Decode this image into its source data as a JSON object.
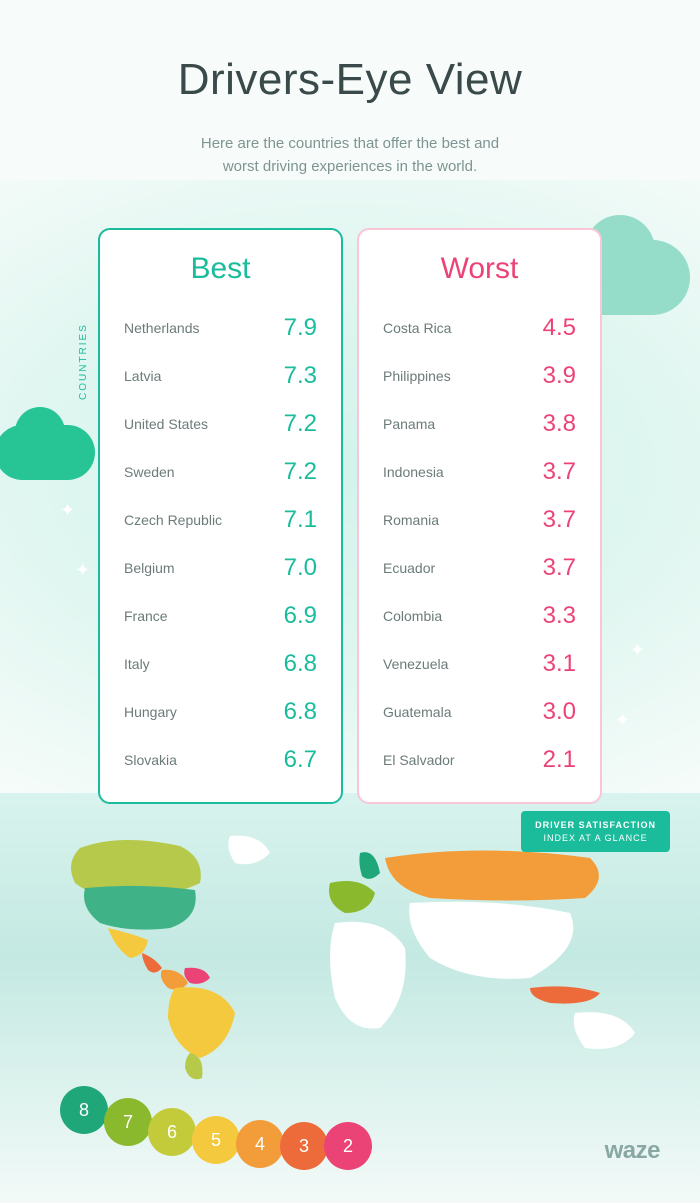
{
  "title": "Drivers-Eye View",
  "subtitle_l1": "Here are the countries that offer the best and",
  "subtitle_l2": "worst driving experiences in the world.",
  "ylabel": "COUNTRIES",
  "best": {
    "title": "Best",
    "color": "#1abc9c",
    "border_color": "#1abc9c",
    "rows": [
      {
        "country": "Netherlands",
        "score": "7.9"
      },
      {
        "country": "Latvia",
        "score": "7.3"
      },
      {
        "country": "United States",
        "score": "7.2"
      },
      {
        "country": "Sweden",
        "score": "7.2"
      },
      {
        "country": "Czech Republic",
        "score": "7.1"
      },
      {
        "country": "Belgium",
        "score": "7.0"
      },
      {
        "country": "France",
        "score": "6.9"
      },
      {
        "country": "Italy",
        "score": "6.8"
      },
      {
        "country": "Hungary",
        "score": "6.8"
      },
      {
        "country": "Slovakia",
        "score": "6.7"
      }
    ]
  },
  "worst": {
    "title": "Worst",
    "color": "#ec4376",
    "border_color": "#f8c6d4",
    "rows": [
      {
        "country": "Costa Rica",
        "score": "4.5"
      },
      {
        "country": "Philippines",
        "score": "3.9"
      },
      {
        "country": "Panama",
        "score": "3.8"
      },
      {
        "country": "Indonesia",
        "score": "3.7"
      },
      {
        "country": "Romania",
        "score": "3.7"
      },
      {
        "country": "Ecuador",
        "score": "3.7"
      },
      {
        "country": "Colombia",
        "score": "3.3"
      },
      {
        "country": "Venezuela",
        "score": "3.1"
      },
      {
        "country": "Guatemala",
        "score": "3.0"
      },
      {
        "country": "El Salvador",
        "score": "2.1"
      }
    ]
  },
  "map_badge_l1": "DRIVER SATISFACTION",
  "map_badge_l2": "INDEX AT A GLANCE",
  "scale": [
    {
      "value": "8",
      "color": "#1fa679"
    },
    {
      "value": "7",
      "color": "#8ab92d"
    },
    {
      "value": "6",
      "color": "#c4cb3a"
    },
    {
      "value": "5",
      "color": "#f5c93d"
    },
    {
      "value": "4",
      "color": "#f39c3a"
    },
    {
      "value": "3",
      "color": "#ed6b3a"
    },
    {
      "value": "2",
      "color": "#ec4376"
    }
  ],
  "logo": "waze",
  "map_countries": {
    "default_fill": "#ffffff",
    "colored": [
      {
        "name": "USA",
        "fill": "#3fb387"
      },
      {
        "name": "Canada",
        "fill": "#b7c94a"
      },
      {
        "name": "Mexico",
        "fill": "#f5c93d"
      },
      {
        "name": "CentralAmerica",
        "fill": "#ed6b3a"
      },
      {
        "name": "Colombia",
        "fill": "#f39c3a"
      },
      {
        "name": "Venezuela",
        "fill": "#ec4376"
      },
      {
        "name": "Brazil",
        "fill": "#f5c93d"
      },
      {
        "name": "Argentina",
        "fill": "#b7c94a"
      },
      {
        "name": "WesternEurope",
        "fill": "#8ab92d"
      },
      {
        "name": "Scandinavia",
        "fill": "#1fa679"
      },
      {
        "name": "Russia",
        "fill": "#f39c3a"
      },
      {
        "name": "Indonesia",
        "fill": "#ed6b3a"
      }
    ]
  },
  "style": {
    "background": "#f7fcfa",
    "title_color": "#3a4a4a",
    "subtitle_color": "#7e9492",
    "country_text_color": "#6b7b7a",
    "title_fontsize": 44,
    "panel_title_fontsize": 30,
    "score_fontsize": 24,
    "country_fontsize": 14
  }
}
